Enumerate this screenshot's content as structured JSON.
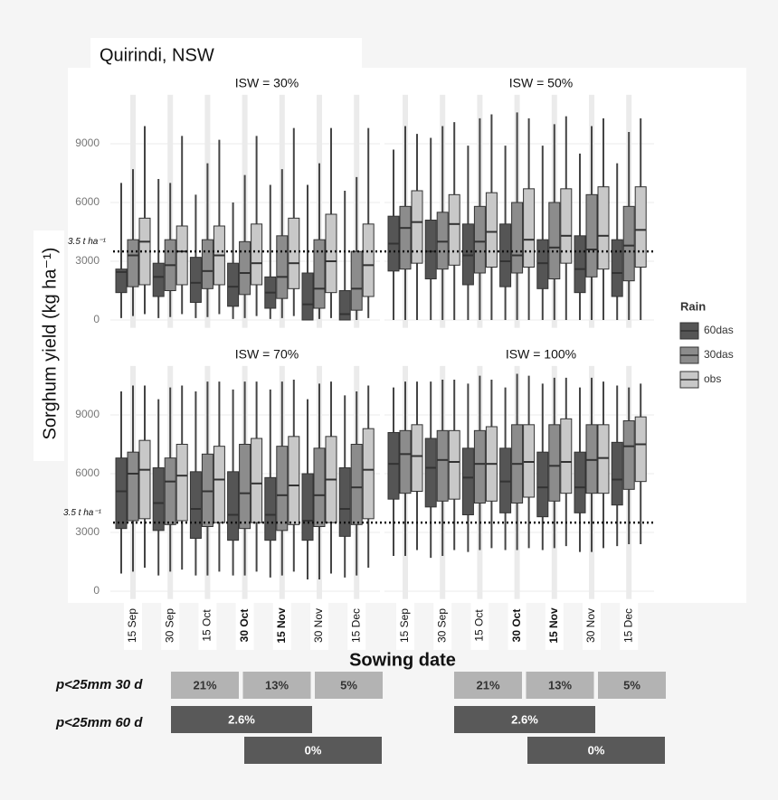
{
  "chart_data": {
    "type": "boxplot",
    "title": "Quirindi, NSW",
    "x_label": "Sowing date",
    "y_label": "Sorghum yield (kg ha⁻¹)",
    "categories": [
      "15 Sep",
      "30 Sep",
      "15 Oct",
      "30 Oct",
      "15 Nov",
      "30 Nov",
      "15 Dec"
    ],
    "category_bold": [
      false,
      false,
      false,
      true,
      true,
      false,
      false
    ],
    "ylim": [
      -400,
      11500
    ],
    "yticks": [
      0,
      3000,
      6000,
      9000
    ],
    "grid": true,
    "hline": {
      "value": 3500,
      "label": "3.5 t ha⁻¹"
    },
    "legend_title": "Rain",
    "legend_position": "right",
    "series": [
      {
        "name": "60das",
        "color": "#555555"
      },
      {
        "name": "30das",
        "color": "#8c8c8c"
      },
      {
        "name": "obs",
        "color": "#c8c8c8"
      }
    ],
    "facets": [
      {
        "title": "ISW = 30%",
        "series": [
          {
            "values": [
              [
                100,
                1400,
                2450,
                2600,
                7000
              ],
              [
                100,
                1200,
                2200,
                2900,
                7200
              ],
              [
                100,
                900,
                1900,
                3200,
                6400
              ],
              [
                50,
                700,
                1700,
                2900,
                6000
              ],
              [
                50,
                600,
                1400,
                2200,
                6900
              ],
              [
                0,
                0,
                800,
                2400,
                6900
              ],
              [
                0,
                0,
                300,
                1500,
                6600
              ]
            ]
          },
          {
            "values": [
              [
                200,
                1700,
                3300,
                4100,
                7700
              ],
              [
                150,
                1500,
                2800,
                4100,
                7000
              ],
              [
                150,
                1600,
                2500,
                4100,
                8000
              ],
              [
                100,
                1300,
                2400,
                4000,
                7400
              ],
              [
                100,
                1100,
                2200,
                4300,
                7700
              ],
              [
                50,
                600,
                1600,
                4100,
                8000
              ],
              [
                0,
                500,
                1600,
                3500,
                7300
              ]
            ]
          },
          {
            "values": [
              [
                300,
                1800,
                4000,
                5200,
                9900
              ],
              [
                300,
                1800,
                3500,
                4800,
                9400
              ],
              [
                300,
                1800,
                3300,
                4800,
                9200
              ],
              [
                200,
                1800,
                2900,
                4900,
                9400
              ],
              [
                200,
                1600,
                2900,
                5200,
                9800
              ],
              [
                100,
                1400,
                3000,
                5400,
                9800
              ],
              [
                100,
                1200,
                2800,
                4900,
                9800
              ]
            ]
          }
        ]
      },
      {
        "title": "ISW = 50%",
        "series": [
          {
            "values": [
              [
                0,
                2500,
                3900,
                5300,
                8700
              ],
              [
                0,
                2100,
                3500,
                5100,
                9300
              ],
              [
                0,
                1800,
                3300,
                4900,
                8900
              ],
              [
                0,
                1700,
                3000,
                4900,
                8900
              ],
              [
                0,
                1600,
                2900,
                4100,
                8900
              ],
              [
                0,
                1400,
                2600,
                4300,
                8500
              ],
              [
                0,
                1200,
                2400,
                4100,
                8000
              ]
            ]
          },
          {
            "values": [
              [
                0,
                2600,
                4700,
                5800,
                9900
              ],
              [
                0,
                2600,
                4000,
                5500,
                9900
              ],
              [
                0,
                2400,
                4000,
                5800,
                10300
              ],
              [
                0,
                2400,
                3300,
                6000,
                10600
              ],
              [
                0,
                2100,
                3700,
                6000,
                10000
              ],
              [
                0,
                2200,
                3600,
                6400,
                9900
              ],
              [
                0,
                2000,
                3800,
                5800,
                9600
              ]
            ]
          },
          {
            "values": [
              [
                0,
                2900,
                5000,
                6600,
                9500
              ],
              [
                0,
                2800,
                4900,
                6400,
                10100
              ],
              [
                0,
                2700,
                4500,
                6500,
                10500
              ],
              [
                0,
                2700,
                4100,
                6700,
                10300
              ],
              [
                0,
                2900,
                4300,
                6700,
                10400
              ],
              [
                0,
                2600,
                4300,
                6800,
                10300
              ],
              [
                0,
                2700,
                4600,
                6800,
                10300
              ]
            ]
          }
        ]
      },
      {
        "title": "ISW = 70%",
        "series": [
          {
            "values": [
              [
                900,
                3200,
                5100,
                6800,
                10200
              ],
              [
                800,
                3100,
                4500,
                6300,
                9800
              ],
              [
                800,
                2700,
                4200,
                6100,
                10200
              ],
              [
                800,
                2600,
                3900,
                6100,
                10300
              ],
              [
                700,
                2600,
                3900,
                5800,
                10300
              ],
              [
                600,
                2600,
                3600,
                6000,
                9800
              ],
              [
                700,
                2800,
                4200,
                6300,
                10000
              ]
            ]
          },
          {
            "values": [
              [
                1000,
                3600,
                6000,
                7100,
                10500
              ],
              [
                1000,
                3400,
                5600,
                6800,
                10400
              ],
              [
                800,
                3300,
                5100,
                7000,
                10700
              ],
              [
                800,
                3200,
                5000,
                7500,
                10700
              ],
              [
                800,
                3100,
                4900,
                7400,
                10700
              ],
              [
                600,
                3300,
                4900,
                7300,
                10600
              ],
              [
                800,
                3400,
                5300,
                7500,
                10200
              ]
            ]
          },
          {
            "values": [
              [
                1200,
                3700,
                6200,
                7700,
                10500
              ],
              [
                1100,
                3600,
                5900,
                7500,
                10500
              ],
              [
                1000,
                3500,
                5700,
                7400,
                10700
              ],
              [
                1000,
                3500,
                5500,
                7800,
                10700
              ],
              [
                1000,
                3400,
                5400,
                7900,
                10800
              ],
              [
                900,
                3500,
                5700,
                7900,
                10700
              ],
              [
                1200,
                3700,
                6200,
                8300,
                10500
              ]
            ]
          }
        ]
      },
      {
        "title": "ISW = 100%",
        "series": [
          {
            "values": [
              [
                1800,
                4700,
                6500,
                8100,
                10400
              ],
              [
                1700,
                4300,
                6300,
                7800,
                10700
              ],
              [
                2000,
                3900,
                5800,
                7300,
                10600
              ],
              [
                2100,
                4000,
                5600,
                7300,
                10400
              ],
              [
                2100,
                3800,
                5300,
                7100,
                10600
              ],
              [
                2000,
                4000,
                5300,
                7100,
                10400
              ],
              [
                2300,
                4400,
                5700,
                7600,
                10500
              ]
            ]
          },
          {
            "values": [
              [
                1800,
                5000,
                7000,
                8200,
                10700
              ],
              [
                1800,
                4600,
                6700,
                8200,
                10800
              ],
              [
                2100,
                4500,
                6500,
                8200,
                11000
              ],
              [
                2100,
                4500,
                6500,
                8500,
                11100
              ],
              [
                2200,
                4600,
                6400,
                8500,
                10900
              ],
              [
                2000,
                5000,
                6700,
                8500,
                10900
              ],
              [
                2400,
                5200,
                7400,
                8700,
                10400
              ]
            ]
          },
          {
            "values": [
              [
                2100,
                5100,
                6900,
                8500,
                10700
              ],
              [
                2100,
                4700,
                6600,
                8200,
                10800
              ],
              [
                2200,
                4600,
                6500,
                8400,
                10800
              ],
              [
                2200,
                4800,
                6600,
                8500,
                11000
              ],
              [
                2300,
                5000,
                6600,
                8800,
                10900
              ],
              [
                2200,
                5000,
                6800,
                8500,
                10700
              ],
              [
                2400,
                5600,
                7500,
                8900,
                10600
              ]
            ]
          }
        ]
      }
    ]
  },
  "rain_probabilities": {
    "row_labels": [
      "p<25mm 30 d",
      "p<25mm 60 d"
    ],
    "panels": [
      {
        "d30": [
          "21%",
          "13%",
          "5%"
        ],
        "d60": [
          "2.6%",
          "0%"
        ]
      },
      {
        "d30": [
          "21%",
          "13%",
          "5%"
        ],
        "d60": [
          "2.6%",
          "0%"
        ]
      }
    ]
  }
}
